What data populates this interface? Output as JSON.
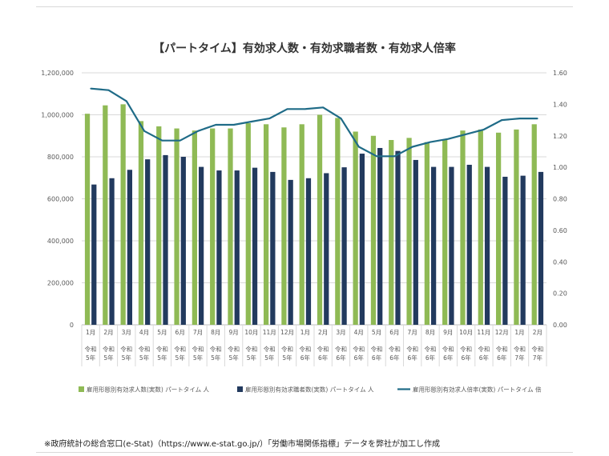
{
  "chart_data": {
    "type": "bar+line",
    "title": "【パートタイム】有効求人数・有効求職者数・有効求人倍率",
    "month_labels": [
      "1月",
      "2月",
      "3月",
      "4月",
      "5月",
      "6月",
      "7月",
      "8月",
      "9月",
      "10月",
      "11月",
      "12月",
      "1月",
      "2月",
      "3月",
      "4月",
      "5月",
      "6月",
      "7月",
      "8月",
      "9月",
      "10月",
      "11月",
      "12月",
      "1月",
      "2月"
    ],
    "year_labels": [
      [
        "令和",
        "5年"
      ],
      [
        "令和",
        "5年"
      ],
      [
        "令和",
        "5年"
      ],
      [
        "令和",
        "5年"
      ],
      [
        "令和",
        "5年"
      ],
      [
        "令和",
        "5年"
      ],
      [
        "令和",
        "5年"
      ],
      [
        "令和",
        "5年"
      ],
      [
        "令和",
        "5年"
      ],
      [
        "令和",
        "5年"
      ],
      [
        "令和",
        "5年"
      ],
      [
        "令和",
        "5年"
      ],
      [
        "令和",
        "6年"
      ],
      [
        "令和",
        "6年"
      ],
      [
        "令和",
        "6年"
      ],
      [
        "令和",
        "6年"
      ],
      [
        "令和",
        "6年"
      ],
      [
        "令和",
        "6年"
      ],
      [
        "令和",
        "6年"
      ],
      [
        "令和",
        "6年"
      ],
      [
        "令和",
        "6年"
      ],
      [
        "令和",
        "6年"
      ],
      [
        "令和",
        "6年"
      ],
      [
        "令和",
        "6年"
      ],
      [
        "令和",
        "7年"
      ],
      [
        "令和",
        "7年"
      ]
    ],
    "y_left": {
      "min": 0,
      "max": 1200000,
      "ticks": [
        "0",
        "200,000",
        "400,000",
        "600,000",
        "800,000",
        "1,000,000",
        "1,200,000"
      ]
    },
    "y_right": {
      "min": 0,
      "max": 1.6,
      "ticks": [
        "0.00",
        "0.20",
        "0.40",
        "0.60",
        "0.80",
        "1.00",
        "1.20",
        "1.40",
        "1.60"
      ]
    },
    "series": [
      {
        "name": "雇用形態別有効求人数(実数) パートタイム 人",
        "kind": "bar",
        "axis": "left",
        "color": "#8fba55",
        "values": [
          1005000,
          1045000,
          1050000,
          970000,
          945000,
          935000,
          925000,
          935000,
          935000,
          960000,
          955000,
          940000,
          955000,
          1000000,
          985000,
          920000,
          900000,
          880000,
          890000,
          870000,
          880000,
          925000,
          930000,
          915000,
          930000,
          955000
        ]
      },
      {
        "name": "雇用形態別有効求職者数(実数) パートタイム 人",
        "kind": "bar",
        "axis": "left",
        "color": "#223a5e",
        "values": [
          668000,
          698000,
          738000,
          788000,
          808000,
          800000,
          752000,
          735000,
          735000,
          748000,
          728000,
          690000,
          698000,
          722000,
          750000,
          815000,
          842000,
          828000,
          785000,
          752000,
          752000,
          762000,
          752000,
          705000,
          710000,
          728000
        ]
      },
      {
        "name": "雇用形態別有効求人倍率(実数) パートタイム 倍",
        "kind": "line",
        "axis": "right",
        "color": "#1f6b87",
        "values": [
          1.5,
          1.49,
          1.42,
          1.23,
          1.17,
          1.17,
          1.23,
          1.27,
          1.27,
          1.29,
          1.31,
          1.37,
          1.37,
          1.38,
          1.31,
          1.13,
          1.07,
          1.07,
          1.13,
          1.16,
          1.18,
          1.21,
          1.24,
          1.3,
          1.31,
          1.31
        ]
      }
    ],
    "grid": "horizontal",
    "legend_position": "bottom"
  },
  "footnote": "※政府統計の総合窓口(e-Stat)（https://www.e-stat.go.jp/）「労働市場関係指標」データを弊社が加工し作成"
}
